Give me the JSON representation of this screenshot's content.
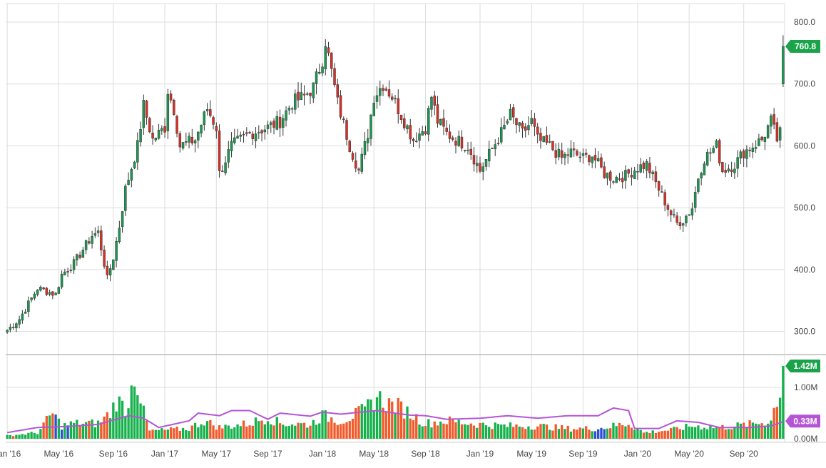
{
  "chart_data": [
    {
      "type": "candlestick",
      "title": "",
      "grid": true,
      "y_axis_position": "right",
      "ylim": [
        265,
        830
      ],
      "y_ticks": [
        300,
        400,
        500,
        600,
        700,
        800
      ],
      "y_tick_labels": [
        "300.0",
        "400.0",
        "500.0",
        "600.0",
        "700.0",
        "800.0"
      ],
      "x_ticks": [
        {
          "label": "Jan '16",
          "index": 0
        },
        {
          "label": "May '16",
          "index": 17
        },
        {
          "label": "Sep '16",
          "index": 35
        },
        {
          "label": "Jan '17",
          "index": 52
        },
        {
          "label": "May '17",
          "index": 69
        },
        {
          "label": "Sep '17",
          "index": 86
        },
        {
          "label": "Jan '18",
          "index": 104
        },
        {
          "label": "May '18",
          "index": 121
        },
        {
          "label": "Sep '18",
          "index": 138
        },
        {
          "label": "Jan '19",
          "index": 156
        },
        {
          "label": "May '19",
          "index": 173
        },
        {
          "label": "Sep '19",
          "index": 190
        },
        {
          "label": "Jan '20",
          "index": 208
        },
        {
          "label": "May '20",
          "index": 225
        },
        {
          "label": "Sep '20",
          "index": 243
        }
      ],
      "last_price_label": "760.8",
      "colors": {
        "up": "#1a9850",
        "down": "#d73027",
        "badge": "#1aa34a"
      },
      "period": "weekly",
      "anchor_closes": [
        [
          0,
          302
        ],
        [
          4,
          320
        ],
        [
          10,
          370
        ],
        [
          16,
          360
        ],
        [
          18,
          392
        ],
        [
          22,
          410
        ],
        [
          28,
          455
        ],
        [
          30,
          460
        ],
        [
          33,
          385
        ],
        [
          35,
          420
        ],
        [
          37,
          470
        ],
        [
          39,
          530
        ],
        [
          43,
          600
        ],
        [
          45,
          665
        ],
        [
          48,
          610
        ],
        [
          52,
          630
        ],
        [
          53,
          690
        ],
        [
          55,
          660
        ],
        [
          57,
          600
        ],
        [
          62,
          610
        ],
        [
          66,
          660
        ],
        [
          69,
          630
        ],
        [
          70,
          555
        ],
        [
          74,
          600
        ],
        [
          80,
          620
        ],
        [
          86,
          630
        ],
        [
          90,
          640
        ],
        [
          94,
          670
        ],
        [
          98,
          680
        ],
        [
          101,
          695
        ],
        [
          104,
          740
        ],
        [
          105,
          770
        ],
        [
          107,
          720
        ],
        [
          109,
          670
        ],
        [
          113,
          600
        ],
        [
          116,
          560
        ],
        [
          119,
          620
        ],
        [
          121,
          680
        ],
        [
          124,
          700
        ],
        [
          127,
          680
        ],
        [
          130,
          650
        ],
        [
          134,
          610
        ],
        [
          138,
          630
        ],
        [
          140,
          680
        ],
        [
          142,
          640
        ],
        [
          145,
          620
        ],
        [
          148,
          610
        ],
        [
          152,
          600
        ],
        [
          156,
          560
        ],
        [
          160,
          595
        ],
        [
          164,
          630
        ],
        [
          166,
          650
        ],
        [
          170,
          620
        ],
        [
          173,
          640
        ],
        [
          175,
          610
        ],
        [
          179,
          600
        ],
        [
          183,
          580
        ],
        [
          186,
          590
        ],
        [
          190,
          580
        ],
        [
          193,
          585
        ],
        [
          197,
          555
        ],
        [
          200,
          548
        ],
        [
          204,
          552
        ],
        [
          208,
          565
        ],
        [
          211,
          570
        ],
        [
          214,
          540
        ],
        [
          217,
          510
        ],
        [
          219,
          490
        ],
        [
          221,
          475
        ],
        [
          223,
          480
        ],
        [
          226,
          500
        ],
        [
          228,
          550
        ],
        [
          230,
          580
        ],
        [
          234,
          600
        ],
        [
          236,
          560
        ],
        [
          240,
          570
        ],
        [
          243,
          590
        ],
        [
          246,
          600
        ],
        [
          249,
          610
        ],
        [
          252,
          640
        ],
        [
          254,
          610
        ],
        [
          255,
          620
        ],
        [
          256,
          760.8
        ]
      ]
    },
    {
      "type": "bar",
      "title": "",
      "series": [
        {
          "values_source": "weekly volume bars"
        }
      ],
      "ylim": [
        0,
        1.6
      ],
      "y_ticks": [
        0,
        1.0
      ],
      "y_tick_labels": [
        "0.00M",
        "1.00M"
      ],
      "last_volume_label": "1.42M",
      "moving_average_label": "0.33M",
      "colors": {
        "up": "#16b14b",
        "down": "#f15a2b",
        "flat": "#2f4fd2",
        "moving_average": "#b455d6",
        "badge_ma": "#b455d6"
      },
      "volume_anchors": [
        [
          0,
          0.06
        ],
        [
          10,
          0.12
        ],
        [
          15,
          0.5
        ],
        [
          18,
          0.25
        ],
        [
          22,
          0.3
        ],
        [
          30,
          0.3
        ],
        [
          34,
          0.5
        ],
        [
          36,
          0.75
        ],
        [
          40,
          0.55
        ],
        [
          41,
          1.35
        ],
        [
          43,
          1.1
        ],
        [
          45,
          0.5
        ],
        [
          47,
          0.15
        ],
        [
          60,
          0.2
        ],
        [
          65,
          0.35
        ],
        [
          70,
          0.22
        ],
        [
          80,
          0.3
        ],
        [
          86,
          0.42
        ],
        [
          90,
          0.3
        ],
        [
          100,
          0.28
        ],
        [
          104,
          0.45
        ],
        [
          110,
          0.35
        ],
        [
          118,
          0.55
        ],
        [
          122,
          0.82
        ],
        [
          125,
          0.7
        ],
        [
          130,
          0.6
        ],
        [
          138,
          0.3
        ],
        [
          145,
          0.35
        ],
        [
          156,
          0.28
        ],
        [
          165,
          0.25
        ],
        [
          175,
          0.25
        ],
        [
          185,
          0.2
        ],
        [
          195,
          0.2
        ],
        [
          205,
          0.3
        ],
        [
          210,
          0.12
        ],
        [
          220,
          0.18
        ],
        [
          226,
          0.25
        ],
        [
          235,
          0.22
        ],
        [
          245,
          0.28
        ],
        [
          252,
          0.35
        ],
        [
          254,
          0.8
        ],
        [
          256,
          1.42
        ]
      ],
      "ma_anchors": [
        [
          0,
          0.12
        ],
        [
          10,
          0.22
        ],
        [
          20,
          0.24
        ],
        [
          30,
          0.28
        ],
        [
          40,
          0.45
        ],
        [
          45,
          0.4
        ],
        [
          50,
          0.22
        ],
        [
          60,
          0.35
        ],
        [
          63,
          0.5
        ],
        [
          70,
          0.45
        ],
        [
          74,
          0.55
        ],
        [
          80,
          0.55
        ],
        [
          86,
          0.38
        ],
        [
          90,
          0.5
        ],
        [
          100,
          0.44
        ],
        [
          104,
          0.52
        ],
        [
          110,
          0.48
        ],
        [
          122,
          0.55
        ],
        [
          128,
          0.5
        ],
        [
          133,
          0.46
        ],
        [
          138,
          0.45
        ],
        [
          145,
          0.38
        ],
        [
          156,
          0.4
        ],
        [
          165,
          0.45
        ],
        [
          175,
          0.4
        ],
        [
          185,
          0.45
        ],
        [
          195,
          0.45
        ],
        [
          200,
          0.6
        ],
        [
          205,
          0.55
        ],
        [
          207,
          0.2
        ],
        [
          215,
          0.2
        ],
        [
          221,
          0.35
        ],
        [
          228,
          0.32
        ],
        [
          235,
          0.22
        ],
        [
          245,
          0.22
        ],
        [
          252,
          0.25
        ],
        [
          256,
          0.33
        ]
      ]
    }
  ]
}
